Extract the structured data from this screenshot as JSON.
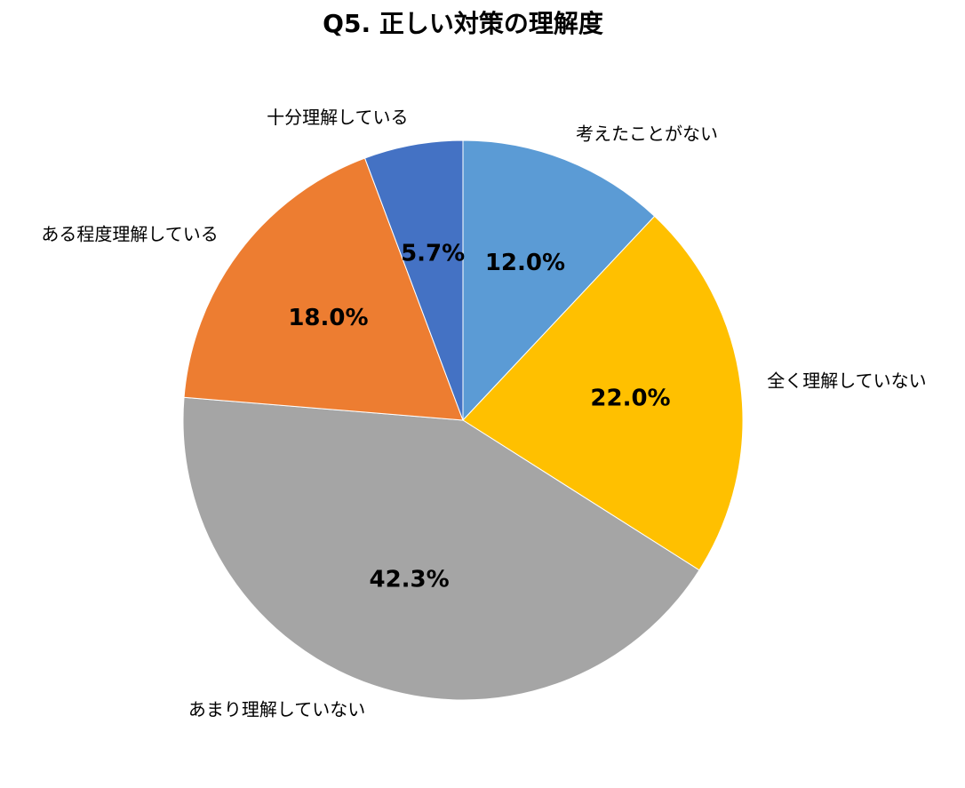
{
  "chart_data": {
    "type": "pie",
    "title": "Q5. 正しい対策の理解度",
    "categories": [
      "考えたことがない",
      "全く理解していない",
      "あまり理解していない",
      "ある程度理解している",
      "十分理解している"
    ],
    "values": [
      12.0,
      22.0,
      42.3,
      18.0,
      5.7
    ],
    "value_labels": [
      "12.0%",
      "22.0%",
      "42.3%",
      "18.0%",
      "5.7%"
    ],
    "colors": [
      "#5B9BD5",
      "#FFC000",
      "#A5A5A5",
      "#ED7D31",
      "#4472C4"
    ]
  }
}
